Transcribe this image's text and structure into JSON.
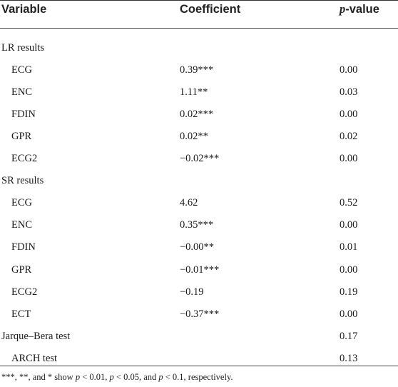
{
  "header": {
    "variable": "Variable",
    "coefficient": "Coefficient",
    "pvalue_italic": "p",
    "pvalue_rest": "-value"
  },
  "rows": [
    {
      "variable": "LR results",
      "coefficient": "",
      "pvalue": "",
      "indent": false
    },
    {
      "variable": "ECG",
      "coefficient": "0.39***",
      "pvalue": "0.00",
      "indent": true
    },
    {
      "variable": "ENC",
      "coefficient": "1.11**",
      "pvalue": "0.03",
      "indent": true
    },
    {
      "variable": "FDIN",
      "coefficient": "0.02***",
      "pvalue": "0.00",
      "indent": true
    },
    {
      "variable": "GPR",
      "coefficient": "0.02**",
      "pvalue": "0.02",
      "indent": true
    },
    {
      "variable": "ECG2",
      "coefficient": "−0.02***",
      "pvalue": "0.00",
      "indent": true
    },
    {
      "variable": "SR results",
      "coefficient": "",
      "pvalue": "",
      "indent": false
    },
    {
      "variable": "ECG",
      "coefficient": "4.62",
      "pvalue": "0.52",
      "indent": true
    },
    {
      "variable": "ENC",
      "coefficient": "0.35***",
      "pvalue": "0.00",
      "indent": true
    },
    {
      "variable": "FDIN",
      "coefficient": "−0.00**",
      "pvalue": "0.01",
      "indent": true
    },
    {
      "variable": "GPR",
      "coefficient": "−0.01***",
      "pvalue": "0.00",
      "indent": true
    },
    {
      "variable": "ECG2",
      "coefficient": "−0.19",
      "pvalue": "0.19",
      "indent": true
    },
    {
      "variable": "ECT",
      "coefficient": "−0.37***",
      "pvalue": "0.00",
      "indent": true
    },
    {
      "variable": "Jarque–Bera test",
      "coefficient": "",
      "pvalue": "0.17",
      "indent": false
    },
    {
      "variable": "ARCH test",
      "coefficient": "",
      "pvalue": "0.13",
      "indent": true
    }
  ],
  "footnote": {
    "stars": "***, **, and * show ",
    "p": "p",
    "t1": " < 0.01, ",
    "t2": " < 0.05, and ",
    "t3": " < 0.1, respectively."
  }
}
